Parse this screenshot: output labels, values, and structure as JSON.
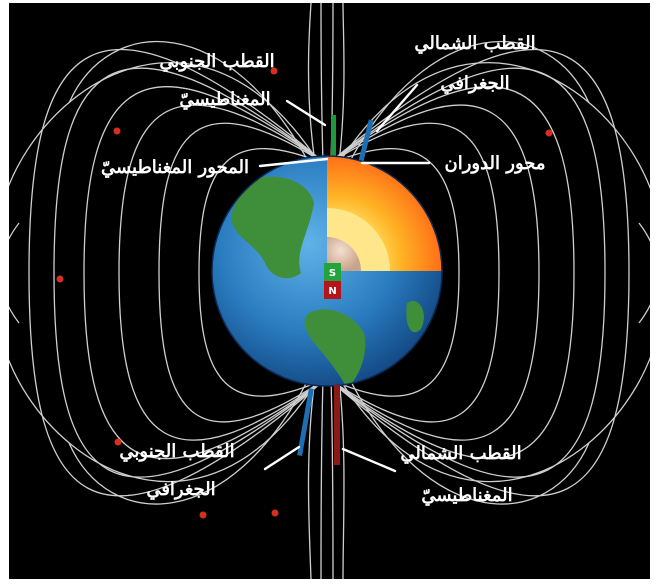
{
  "labels": {
    "magnetic_south_pole_line1": "القطب الجنوبي",
    "magnetic_south_pole_line2": "المغناطيسيّ",
    "magnetic_axis": "المحور المغناطيسيّ",
    "geographic_north_pole_line1": "القطب الشمالي",
    "geographic_north_pole_line2": "الجغرافي",
    "rotation_axis": "محور الدوران",
    "geographic_south_pole_line1": "القطب الجنوبي",
    "geographic_south_pole_line2": "الجغرافي",
    "magnetic_north_pole_line1": "القطب الشمالي",
    "magnetic_north_pole_line2": "المغناطيسيّ"
  },
  "bar_magnet": {
    "south_label": "S",
    "north_label": "N"
  },
  "colors": {
    "background": "#000000",
    "field_lines": "#cfcfcf",
    "magnetic_axis": "#1e9a3c",
    "geographic_axis": "#1c6fb3",
    "magnet_south": "#22a33c",
    "magnet_north": "#b3151b",
    "field_markers": "#d72f1e"
  }
}
